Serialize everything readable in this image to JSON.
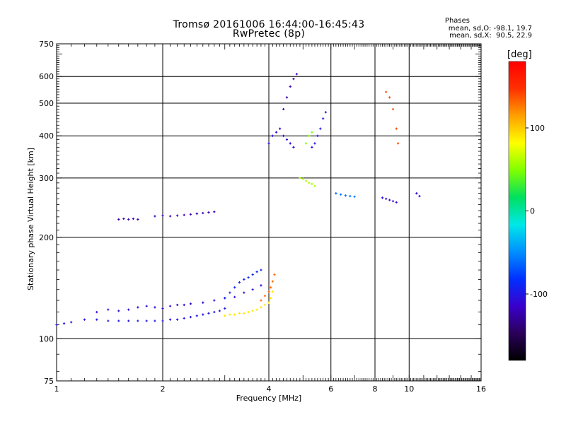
{
  "chart_data": {
    "type": "scatter",
    "title": "Tromsø 20161006 16:44:00-16:45:43",
    "subtitle": "RwPretec (8p)",
    "xlabel": "Frequency [MHz]",
    "ylabel": "Stationary phase Virtual Height [km]",
    "xscale": "log",
    "yscale": "log",
    "xlim": [
      1,
      16
    ],
    "ylim": [
      75,
      750
    ],
    "xticks": [
      1,
      2,
      4,
      6,
      8,
      10,
      16
    ],
    "yticks": [
      75,
      100,
      200,
      300,
      400,
      500,
      600,
      750
    ],
    "grid": true,
    "phase_header": "Phases",
    "stats": [
      "mean, sd,O: -98.1, 19.7",
      "mean, sd,X:  90.5, 22.9"
    ],
    "colorbar": {
      "label": "[deg]",
      "range": [
        -180,
        180
      ],
      "ticks": [
        100,
        0,
        -100
      ],
      "colors": [
        "#000000",
        "#2a005a",
        "#3b00cc",
        "#0030ff",
        "#0090ff",
        "#00e8e8",
        "#00e060",
        "#80ff00",
        "#ffff00",
        "#ffa000",
        "#ff3000",
        "#ff0000"
      ]
    },
    "traces": [
      {
        "mode": "O",
        "phase": -100,
        "x": [
          1.0,
          1.05,
          1.1,
          1.2,
          1.3,
          1.4,
          1.5,
          1.6,
          1.7,
          1.8,
          1.9,
          2.0,
          2.1,
          2.2,
          2.3,
          2.4,
          2.5,
          2.6,
          2.7,
          2.8,
          2.9,
          3.0
        ],
        "y": [
          110,
          111,
          112,
          114,
          114,
          113,
          113,
          113,
          113,
          113,
          113,
          113,
          114,
          114,
          115,
          116,
          117,
          118,
          119,
          120,
          121,
          123
        ]
      },
      {
        "mode": "O",
        "phase": -110,
        "x": [
          1.3,
          1.4,
          1.5,
          1.6,
          1.7,
          1.8,
          1.9,
          2.0,
          2.1,
          2.2,
          2.3,
          2.4,
          2.6,
          2.8,
          3.0,
          3.2,
          3.4,
          3.6,
          3.8
        ],
        "y": [
          120,
          122,
          121,
          122,
          124,
          125,
          124,
          123,
          125,
          126,
          126,
          127,
          128,
          130,
          132,
          133,
          137,
          140,
          144
        ]
      },
      {
        "mode": "O",
        "phase": -90,
        "x": [
          3.0,
          3.1,
          3.2,
          3.3,
          3.4,
          3.5,
          3.6,
          3.7,
          3.8
        ],
        "y": [
          132,
          137,
          142,
          147,
          150,
          152,
          155,
          158,
          160
        ]
      },
      {
        "mode": "X",
        "phase": 90,
        "x": [
          3.0,
          3.1,
          3.2,
          3.3,
          3.4,
          3.5,
          3.6,
          3.7,
          3.8,
          3.9,
          4.0,
          4.05,
          4.1
        ],
        "y": [
          117,
          118,
          118,
          119,
          119,
          120,
          121,
          122,
          124,
          126,
          128,
          132,
          138
        ]
      },
      {
        "mode": "X",
        "phase": 130,
        "x": [
          3.8,
          3.9,
          4.0,
          4.05,
          4.1,
          4.15
        ],
        "y": [
          130,
          134,
          138,
          142,
          148,
          155
        ]
      },
      {
        "mode": "E",
        "phase": -120,
        "x": [
          1.5,
          1.55,
          1.6,
          1.65,
          1.7
        ],
        "y": [
          226,
          227,
          226,
          227,
          226
        ]
      },
      {
        "mode": "E",
        "phase": -120,
        "x": [
          1.9,
          2.0,
          2.1,
          2.2,
          2.3,
          2.4,
          2.5,
          2.6,
          2.7,
          2.8
        ],
        "y": [
          231,
          232,
          231,
          232,
          233,
          234,
          235,
          236,
          237,
          238
        ]
      },
      {
        "mode": "F",
        "phase": -110,
        "x": [
          4.0,
          4.1,
          4.2,
          4.3,
          4.4,
          4.5,
          4.6,
          4.7
        ],
        "y": [
          380,
          400,
          410,
          420,
          400,
          390,
          380,
          370
        ]
      },
      {
        "mode": "F",
        "phase": -120,
        "x": [
          4.4,
          4.5,
          4.6,
          4.7,
          4.8
        ],
        "y": [
          480,
          520,
          560,
          590,
          610
        ]
      },
      {
        "mode": "F",
        "phase": -100,
        "x": [
          5.3,
          5.4,
          5.5,
          5.6,
          5.7,
          5.8
        ],
        "y": [
          370,
          380,
          400,
          420,
          450,
          470
        ]
      },
      {
        "mode": "F",
        "phase": 60,
        "x": [
          4.9,
          5.0,
          5.1,
          5.2,
          5.3,
          5.4
        ],
        "y": [
          300,
          298,
          294,
          290,
          288,
          284
        ]
      },
      {
        "mode": "F",
        "phase": 50,
        "x": [
          5.1,
          5.2,
          5.3
        ],
        "y": [
          380,
          400,
          410
        ]
      },
      {
        "mode": "F",
        "phase": -60,
        "x": [
          6.2,
          6.4,
          6.6,
          6.8,
          7.0
        ],
        "y": [
          270,
          268,
          266,
          265,
          264
        ]
      },
      {
        "mode": "F",
        "phase": -110,
        "x": [
          8.4,
          8.6,
          8.8,
          9.0,
          9.2,
          10.5,
          10.7
        ],
        "y": [
          262,
          260,
          258,
          256,
          254,
          270,
          265
        ]
      },
      {
        "mode": "F",
        "phase": 140,
        "x": [
          8.6,
          8.8,
          9.0,
          9.2,
          9.3
        ],
        "y": [
          540,
          520,
          480,
          420,
          380
        ]
      }
    ]
  }
}
